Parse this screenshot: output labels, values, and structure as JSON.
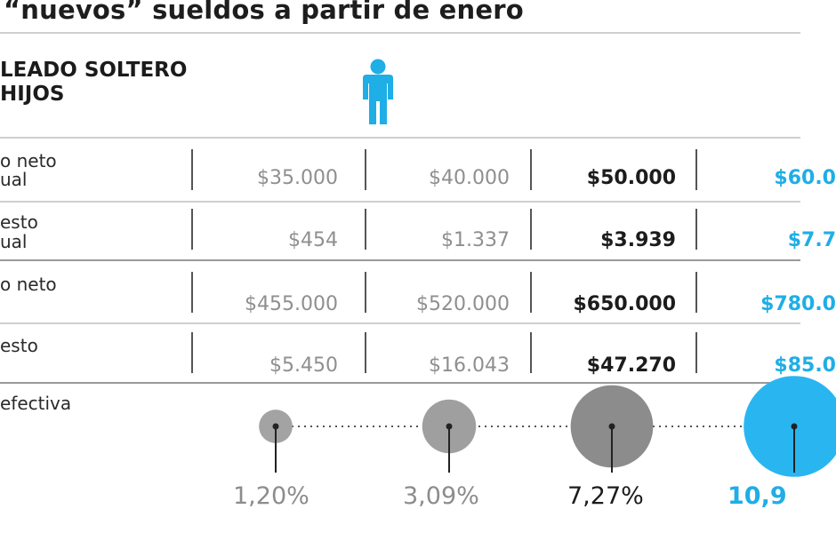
{
  "header": {
    "title": "“nuevos” sueldos a partir de enero",
    "subtitle_line1": "LEADO SOLTERO",
    "subtitle_line2": "HIJOS",
    "person_icon": "person-icon",
    "accent_color": "#1faee6"
  },
  "chart_data": {
    "type": "table",
    "columns": 4,
    "rows": [
      {
        "label_lines": [
          "o neto",
          "ual"
        ],
        "values": [
          "$35.000",
          "$40.000",
          "$50.000",
          "$60.0"
        ]
      },
      {
        "label_lines": [
          "esto",
          "ual"
        ],
        "values": [
          "$454",
          "$1.337",
          "$3.939",
          "$7.7"
        ]
      },
      {
        "label_lines": [
          "o neto",
          ""
        ],
        "values": [
          "$455.000",
          "$520.000",
          "$650.000",
          "$780.0"
        ]
      },
      {
        "label_lines": [
          "esto",
          ""
        ],
        "values": [
          "$5.450",
          "$16.043",
          "$47.270",
          "$85.0"
        ]
      }
    ],
    "effective_rate": {
      "label": "efectiva",
      "values_pct": [
        1.2,
        3.09,
        7.27,
        10.9
      ],
      "labels": [
        "1,20%",
        "3,09%",
        "7,27%",
        "10,9"
      ],
      "colors": [
        "#a3a3a3",
        "#9f9f9f",
        "#8c8c8c",
        "#29b6f0"
      ]
    }
  }
}
